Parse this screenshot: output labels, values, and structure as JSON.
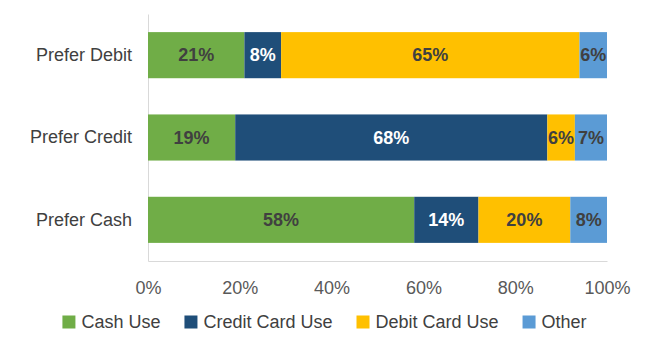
{
  "chart_data": {
    "type": "bar",
    "orientation": "horizontal",
    "stacked": true,
    "data_labels": true,
    "grid": false,
    "legend": "bottom",
    "categories": [
      "Prefer Debit",
      "Prefer Credit",
      "Prefer Cash"
    ],
    "series": [
      {
        "name": "Cash Use",
        "color": "#70ad47",
        "values": [
          21,
          19,
          58
        ],
        "value_labels": [
          "21%",
          "19%",
          "58%"
        ]
      },
      {
        "name": "Credit Card Use",
        "color": "#1f4e79",
        "values": [
          8,
          68,
          14
        ],
        "value_labels": [
          "8%",
          "68%",
          "14%"
        ]
      },
      {
        "name": "Debit Card Use",
        "color": "#ffc000",
        "values": [
          65,
          6,
          20
        ],
        "value_labels": [
          "65%",
          "6%",
          "20%"
        ]
      },
      {
        "name": "Other",
        "color": "#5b9bd5",
        "values": [
          6,
          7,
          8
        ],
        "value_labels": [
          "6%",
          "7%",
          "8%"
        ]
      }
    ],
    "xlim": [
      0,
      100
    ],
    "xticks": [
      {
        "value": 0,
        "label": "0%"
      },
      {
        "value": 20,
        "label": "20%"
      },
      {
        "value": 40,
        "label": "40%"
      },
      {
        "value": 60,
        "label": "60%"
      },
      {
        "value": 80,
        "label": "80%"
      },
      {
        "value": 100,
        "label": "100%"
      }
    ]
  }
}
